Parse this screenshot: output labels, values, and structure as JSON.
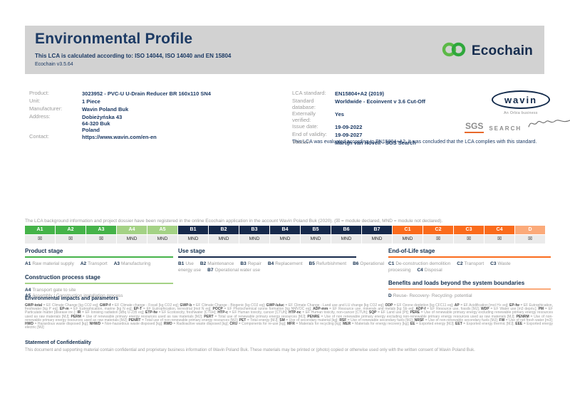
{
  "header": {
    "title": "Environmental Profile",
    "subtitle": "This LCA is calculated according to: ISO 14044, ISO 14040 and EN 15804",
    "version": "Ecochain v3.5.64",
    "brand": "Ecochain"
  },
  "product_info": {
    "rows": [
      {
        "label": "Product:",
        "value": "3023952 - PVC-U U-Drain Reducer BR 160x110 SN4"
      },
      {
        "label": "Unit:",
        "value": "1 Piece"
      },
      {
        "label": "Manufacturer:",
        "value": "Wavin Poland Buk"
      },
      {
        "label": "Address:",
        "value": "Dobieżyńska 43\n64-320 Buk\nPoland"
      },
      {
        "label": "Contact:",
        "value": "https://www.wavin.com/en-en"
      }
    ]
  },
  "lca_info": {
    "rows": [
      {
        "label": "LCA standard:",
        "value": "EN15804+A2 (2019)"
      },
      {
        "label": "Standard database:",
        "value": "Worldwide - Ecoinvent v 3.6 Cut-Off"
      },
      {
        "label": "Externally verified:",
        "value": "Yes"
      },
      {
        "label": "Issue date:",
        "value": "19-09-2022"
      },
      {
        "label": "End of validity:",
        "value": "19-09-2027"
      },
      {
        "label": "Verifier:",
        "value": "Martijn van Hövell - SGS Search"
      }
    ],
    "note": "This LCA was evaluated according to EN15804+A2. It was concluded that the LCA complies with this standard."
  },
  "logos": {
    "wavin": "wavin",
    "wavin_sub": "An Orbia business",
    "sgs": "SGS",
    "search": "SEARCH"
  },
  "registration_note": "The LCA background information and project dossier have been registered in the online Ecochain application in the account Wavin Poland Buk (2020). (☒ = module declared, MND = module not declared).",
  "module_table": {
    "group_colors": {
      "a": "#45b349",
      "a45": "#a4d285",
      "b": "#16294b",
      "c": "#fa6b1c",
      "d": "#fbaa7a"
    },
    "columns": [
      {
        "code": "A1",
        "group": "a",
        "status": "☒"
      },
      {
        "code": "A2",
        "group": "a",
        "status": "☒"
      },
      {
        "code": "A3",
        "group": "a",
        "status": "☒"
      },
      {
        "code": "A4",
        "group": "a45",
        "status": "MND"
      },
      {
        "code": "A5",
        "group": "a45",
        "status": "MND"
      },
      {
        "code": "B1",
        "group": "b",
        "status": "MND"
      },
      {
        "code": "B2",
        "group": "b",
        "status": "MND"
      },
      {
        "code": "B3",
        "group": "b",
        "status": "MND"
      },
      {
        "code": "B4",
        "group": "b",
        "status": "MND"
      },
      {
        "code": "B5",
        "group": "b",
        "status": "MND"
      },
      {
        "code": "B6",
        "group": "b",
        "status": "MND"
      },
      {
        "code": "B7",
        "group": "b",
        "status": "MND"
      },
      {
        "code": "C1",
        "group": "c",
        "status": "MND"
      },
      {
        "code": "C2",
        "group": "c",
        "status": "☒"
      },
      {
        "code": "C3",
        "group": "c",
        "status": "☒"
      },
      {
        "code": "C4",
        "group": "c",
        "status": "☒"
      },
      {
        "code": "D",
        "group": "d",
        "status": "☒"
      }
    ]
  },
  "stages": {
    "col1": [
      {
        "title": "Product stage",
        "color": "#45b349",
        "layout": "inline",
        "items": [
          {
            "code": "A1",
            "label": "Raw material supply"
          },
          {
            "code": "A2",
            "label": "Transport"
          },
          {
            "code": "A3",
            "label": "Manufacturing"
          }
        ]
      },
      {
        "title": "Construction process stage",
        "color": "#a4d285",
        "layout": "block",
        "items": [
          {
            "code": "A4",
            "label": "Transport gate to site"
          },
          {
            "code": "A5",
            "label": "Assembly / Construction installation process"
          }
        ]
      }
    ],
    "col2": [
      {
        "title": "Use stage",
        "color": "#16294b",
        "layout": "inline",
        "items": [
          {
            "code": "B1",
            "label": "Use"
          },
          {
            "code": "B2",
            "label": "Maintenance"
          },
          {
            "code": "B3",
            "label": "Repair"
          },
          {
            "code": "B4",
            "label": "Replacement"
          },
          {
            "code": "B5",
            "label": "Refurbishment"
          },
          {
            "code": "B6",
            "label": "Operational energy use"
          },
          {
            "code": "B7",
            "label": "Operational water use"
          }
        ]
      }
    ],
    "col3": [
      {
        "title": "End-of-Life stage",
        "color": "#fa6b1c",
        "layout": "inline",
        "items": [
          {
            "code": "C1",
            "label": "De-construction demolition"
          },
          {
            "code": "C2",
            "label": "Transport"
          },
          {
            "code": "C3",
            "label": "Waste processing"
          },
          {
            "code": "C4",
            "label": "Disposal"
          }
        ]
      },
      {
        "title": "Benefits and loads beyond the system boundaries",
        "color": "#fbaa7a",
        "layout": "block",
        "items": [
          {
            "code": "D",
            "label": "Reuse- Recovery- Recycling- potential"
          }
        ]
      }
    ]
  },
  "impacts": {
    "heading": "Environmental impacts and parameters",
    "definitions": [
      {
        "term": "GWP-total",
        "def": "EF Climate Change [kg CO2 eq]"
      },
      {
        "term": "GWP-f",
        "def": "EF Climate change - Fossil [kg CO2 eq]"
      },
      {
        "term": "GWP-b",
        "def": "EF Climate Change - Biogenic [kg CO2 eq]"
      },
      {
        "term": "GWP-luluc",
        "def": "EF Climate Change - Land use and LU change [kg CO2 eq]"
      },
      {
        "term": "ODP",
        "def": "EF Ozone depletion [kg CFC11 eq]"
      },
      {
        "term": "AP",
        "def": "EF Acidification [mol H+ eq]"
      },
      {
        "term": "EP-fw",
        "def": "EF Eutrophication, freshwater [kg P eq]"
      },
      {
        "term": "EP-m",
        "def": "EF Eutrophication, marine [kg N eq]"
      },
      {
        "term": "EP-T",
        "def": "EF Eutrophication, terrestrial [mol N eq]"
      },
      {
        "term": "POCP",
        "def": "EF Photochemical ozone formation [kg NMVOC eq]"
      },
      {
        "term": "ADP-mm",
        "def": "EF Resource use, minerals and metals [kg Sb eq]"
      },
      {
        "term": "ADP-f",
        "def": "EF Resource use, fossils [MJ]"
      },
      {
        "term": "WDP",
        "def": "EF Water use [m3 depriv.]"
      },
      {
        "term": "PM",
        "def": "EF Particulate matter [disease inc.]"
      },
      {
        "term": "IR",
        "def": "EF Ionising radiation [kBq U-235 eq]"
      },
      {
        "term": "ETP-fw",
        "def": "EF Ecotoxicity, freshwater [CTUe]"
      },
      {
        "term": "HTP-c",
        "def": "EF Human toxicity, cancer [CTUh]"
      },
      {
        "term": "HTP-nc",
        "def": "EF Human toxicity, non-cancer [CTUh]"
      },
      {
        "term": "SQP",
        "def": "EF Land use [Pt]"
      },
      {
        "term": "PERE",
        "def": "Use of renewable primary energy excluding renewable primary energy resources used as raw materials [MJ]"
      },
      {
        "term": "PERM",
        "def": "Use of renewable primary energy resources used as raw materials [MJ]"
      },
      {
        "term": "PERT",
        "def": "Total use of renewable primary energy resources [MJ]"
      },
      {
        "term": "PENRE",
        "def": "Use of non renewable primary energy excluding non-renewable primary energy resources used as raw materials [MJ]"
      },
      {
        "term": "PENRM",
        "def": "Use of non-renewable primary energy resources used as raw materials [MJ]"
      },
      {
        "term": "PENRT",
        "def": "Total use of non-renewable primary energy resources [MJ]"
      },
      {
        "term": "PET",
        "def": "Total energy [MJ]"
      },
      {
        "term": "SM",
        "def": "Use of secondary material [kg]"
      },
      {
        "term": "RSF",
        "def": "Use of renewable secondary fuels [MJ]"
      },
      {
        "term": "NRSF",
        "def": "Use of non-renewable secondary fuels [MJ]"
      },
      {
        "term": "FW",
        "def": "Use of net fresh water [m3]"
      },
      {
        "term": "HWD",
        "def": "Hazardous waste disposed [kg]"
      },
      {
        "term": "NHWD",
        "def": "Non-hazardous waste disposed [kg]"
      },
      {
        "term": "RWD",
        "def": "Radioactive waste disposed [kg]"
      },
      {
        "term": "CRU",
        "def": "Components for re-use [kg]"
      },
      {
        "term": "MFR",
        "def": "Materials for recycling [kg]"
      },
      {
        "term": "MER",
        "def": "Materials for energy recovery [kg]"
      },
      {
        "term": "EE",
        "def": "Exported energy [MJ]"
      },
      {
        "term": "EET",
        "def": "Exported energy thermic [MJ]"
      },
      {
        "term": "EEE",
        "def": "Exported energy electric [MJ]"
      }
    ]
  },
  "confidentiality": {
    "heading": "Statement of Confidentiality",
    "text": "This document and supporting material contain confidential and proprietary business information of Wavin Poland Buk. These materials may be printed or (photo) copied or otherwise used only with the written consent of Wavin Poland Buk."
  },
  "colors": {
    "header_band": "#d2d2d2",
    "navy": "#16294b",
    "green": "#45b349",
    "light_green": "#a4d285",
    "orange": "#fa6b1c",
    "salmon": "#fbaa7a",
    "sgs_orange": "#e8682a"
  }
}
